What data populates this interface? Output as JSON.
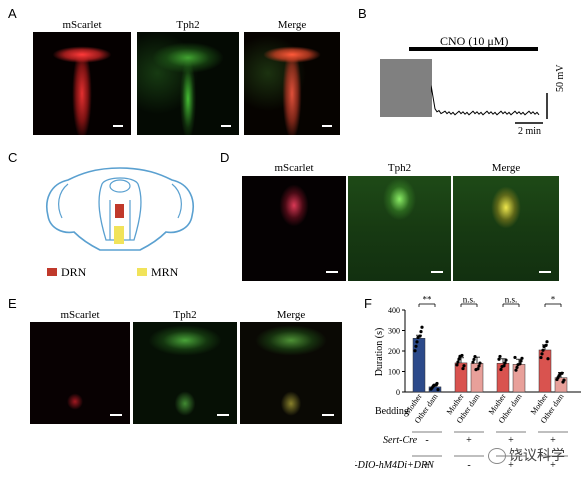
{
  "panels": {
    "a": {
      "letter": "A",
      "labels": [
        "mScarlet",
        "Tph2",
        "Merge"
      ]
    },
    "b": {
      "letter": "B",
      "cno": "CNO (10 μM)",
      "volt": "50 mV",
      "time": "2 min"
    },
    "c": {
      "letter": "C",
      "drn": "DRN",
      "mrn": "MRN",
      "drn_color": "#c0392b",
      "mrn_color": "#f1e35a"
    },
    "d": {
      "letter": "D",
      "labels": [
        "mScarlet",
        "Tph2",
        "Merge"
      ]
    },
    "e": {
      "letter": "E",
      "labels": [
        "mScarlet",
        "Tph2",
        "Merge"
      ]
    },
    "f": {
      "letter": "F"
    }
  },
  "chart_data": {
    "type": "bar",
    "ylabel": "Duration (s)",
    "ylim": [
      0,
      400
    ],
    "yticks": [
      0,
      100,
      200,
      300,
      400
    ],
    "categories": [
      "Mother",
      "Other dam",
      "Mother",
      "Other dam",
      "Mother",
      "Other dam",
      "Mother",
      "Other dam"
    ],
    "values": [
      262,
      25,
      142,
      140,
      140,
      135,
      205,
      70
    ],
    "errors": [
      15,
      8,
      25,
      30,
      22,
      25,
      25,
      25
    ],
    "bar_colors": [
      "#2c4a8a",
      "#2c4a8a",
      "#d9534f",
      "#e8a09a",
      "#d9534f",
      "#e8a09a",
      "#d9534f",
      "#e8a09a"
    ],
    "significance": [
      "**",
      "n.s.",
      "n.s.",
      "*"
    ],
    "row_labels": {
      "bedding": "Bedding",
      "sertcre": "Sert-Cre",
      "aav": "AAV-DIO-hM4Di+DRN"
    },
    "sertcre_signs": [
      "-",
      "+",
      "+",
      "+"
    ],
    "aav_signs": [
      "+",
      "-",
      "+",
      "+"
    ]
  },
  "watermark": "饶议科学"
}
